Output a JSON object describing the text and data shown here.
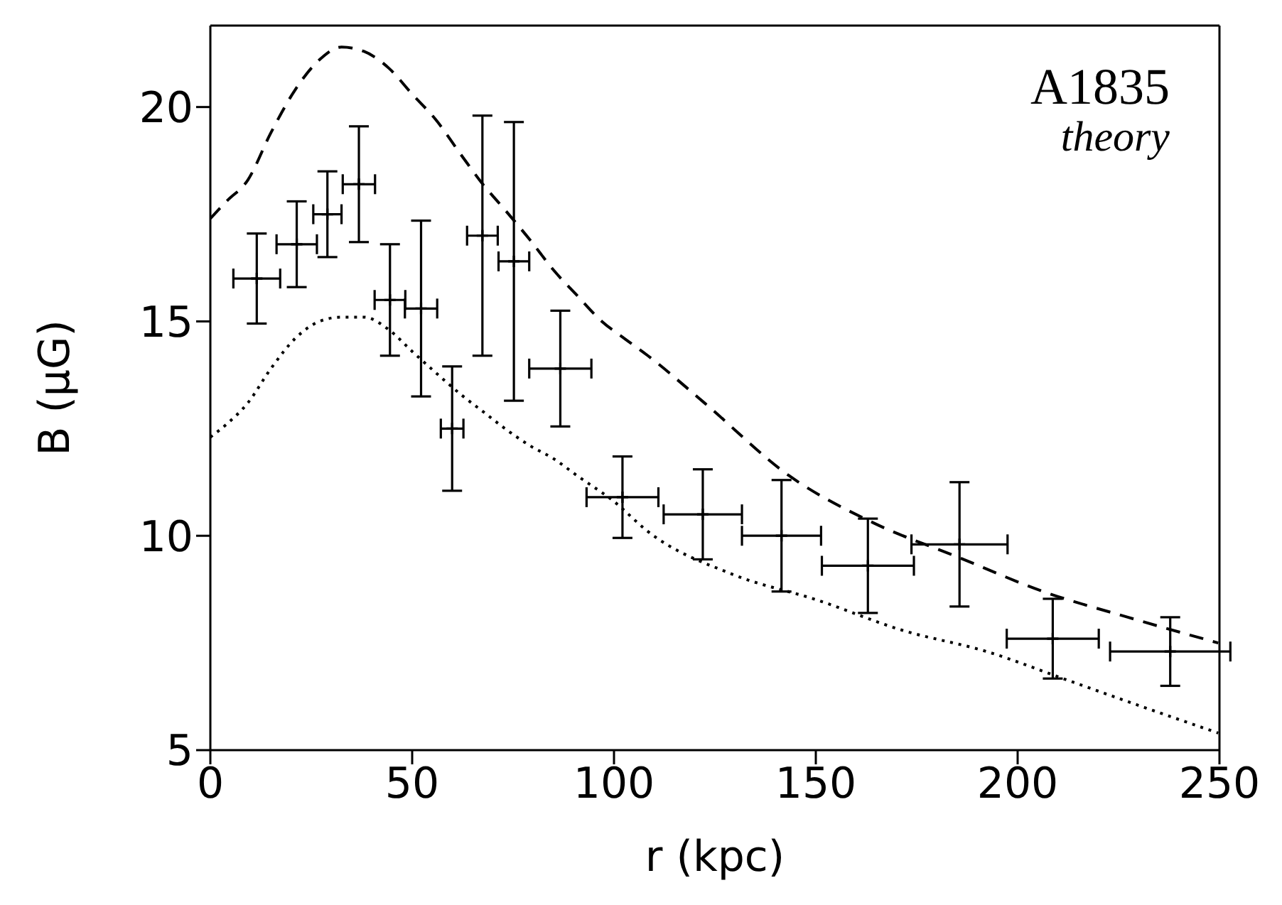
{
  "chart_data": {
    "type": "scatter",
    "xlabel": "r (kpc)",
    "ylabel": "B (μG)",
    "annotations": [
      "A1835",
      "theory"
    ],
    "xlim": [
      0,
      250
    ],
    "xticks": [
      0,
      50,
      100,
      150,
      200,
      250
    ],
    "ylim": [
      5,
      21.9
    ],
    "yticks": [
      5,
      10,
      15,
      20
    ],
    "grid": false,
    "series": [
      {
        "color": "#000000",
        "marker": "cross",
        "x": [
          11.5,
          21.4,
          29.0,
          36.8,
          44.5,
          52.2,
          59.9,
          67.4,
          75.2,
          86.7,
          102.1,
          122.0,
          141.5,
          162.9,
          185.6,
          208.7,
          237.8
        ],
        "values": [
          16.0,
          16.8,
          17.5,
          18.2,
          15.5,
          15.3,
          12.5,
          17.0,
          16.4,
          13.9,
          10.9,
          10.5,
          10.0,
          9.3,
          9.8,
          7.6,
          7.3
        ],
        "errors": [
          1.05,
          1.0,
          1.0,
          1.35,
          1.3,
          2.05,
          1.45,
          2.8,
          3.25,
          1.35,
          0.95,
          1.05,
          1.3,
          1.1,
          1.45,
          0.93,
          0.8
        ],
        "xerrors": [
          5.8,
          5.0,
          3.5,
          4.0,
          3.8,
          4.0,
          2.8,
          3.8,
          3.8,
          7.7,
          8.9,
          9.7,
          9.8,
          11.4,
          11.9,
          11.4,
          14.9
        ]
      },
      {
        "type": "line",
        "color": "#000000",
        "line_style": "dashed",
        "marker": "none",
        "x": [
          0,
          4,
          9.3,
          15,
          21.0,
          27,
          32.5,
          38,
          44.3,
          50,
          55.9,
          62,
          67.5,
          73,
          79.2,
          85,
          90.9,
          97,
          102.6,
          108.4,
          122.4,
          143.4,
          164.3,
          185.3,
          206.3,
          227.3,
          249.7
        ],
        "values": [
          17.4,
          17.8,
          18.3,
          19.4,
          20.4,
          21.1,
          21.4,
          21.3,
          20.9,
          20.3,
          19.7,
          18.9,
          18.2,
          17.6,
          16.9,
          16.2,
          15.6,
          15.0,
          14.6,
          14.2,
          13.1,
          11.4,
          10.3,
          9.5,
          8.7,
          8.1,
          7.5
        ]
      },
      {
        "type": "line",
        "color": "#000000",
        "line_style": "dotted",
        "marker": "none",
        "x": [
          0,
          4,
          9.3,
          15,
          21.0,
          27,
          32.5,
          38,
          44.3,
          50,
          55.9,
          62,
          67.5,
          73,
          79.2,
          85,
          90.9,
          100,
          108.4,
          129.4,
          150.4,
          171.3,
          192.3,
          213.3,
          234.3,
          249.7
        ],
        "values": [
          12.3,
          12.6,
          13.1,
          13.9,
          14.6,
          15.0,
          15.1,
          15.1,
          14.8,
          14.3,
          13.8,
          13.3,
          12.9,
          12.5,
          12.1,
          11.8,
          11.4,
          10.8,
          10.1,
          9.1,
          8.5,
          7.8,
          7.3,
          6.6,
          5.9,
          5.4
        ]
      }
    ]
  }
}
